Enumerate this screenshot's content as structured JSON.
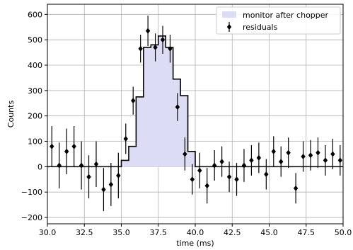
{
  "chart_data": {
    "type": "histogram_with_errorbars",
    "xlabel": "time (ms)",
    "ylabel": "Counts",
    "xlim": [
      30.0,
      50.0
    ],
    "ylim": [
      -225,
      640
    ],
    "grid": true,
    "legend_position": "top-right",
    "x_ticks": [
      30.0,
      32.5,
      35.0,
      37.5,
      40.0,
      42.5,
      45.0,
      47.5,
      50.0
    ],
    "x_tick_labels": [
      "30.0",
      "32.5",
      "35.0",
      "37.5",
      "40.0",
      "42.5",
      "45.0",
      "47.5",
      "50.0"
    ],
    "y_ticks": [
      -200,
      -100,
      0,
      100,
      200,
      300,
      400,
      500,
      600
    ],
    "y_tick_labels": [
      "−200",
      "−100",
      "0",
      "100",
      "200",
      "300",
      "400",
      "500",
      "600"
    ],
    "series": [
      {
        "name": "monitor after chopper",
        "kind": "step_fill",
        "color": "#dcdcf5",
        "edge_color": "#000000",
        "bin_edges": [
          30.0,
          35.0,
          35.5,
          36.0,
          36.5,
          37.0,
          37.5,
          38.0,
          38.5,
          39.0,
          39.5,
          40.0,
          50.0
        ],
        "values": [
          0,
          25,
          80,
          275,
          470,
          480,
          515,
          470,
          345,
          280,
          60,
          0
        ]
      },
      {
        "name": "residuals",
        "kind": "errorbar",
        "color": "#000000",
        "x": [
          30.3,
          30.8,
          31.3,
          31.8,
          32.3,
          32.8,
          33.3,
          33.8,
          34.3,
          34.8,
          35.3,
          35.8,
          36.3,
          36.8,
          37.3,
          37.8,
          38.3,
          38.8,
          39.3,
          39.8,
          40.3,
          40.8,
          41.3,
          41.8,
          42.3,
          42.8,
          43.3,
          43.8,
          44.3,
          44.8,
          45.3,
          45.8,
          46.3,
          46.8,
          47.3,
          47.8,
          48.3,
          48.8,
          49.3,
          49.8
        ],
        "y": [
          80,
          5,
          60,
          80,
          5,
          -40,
          10,
          -90,
          -70,
          -35,
          110,
          260,
          465,
          535,
          470,
          500,
          465,
          235,
          50,
          -50,
          -15,
          -75,
          5,
          20,
          -40,
          -50,
          5,
          25,
          35,
          -30,
          60,
          20,
          55,
          -85,
          40,
          45,
          55,
          25,
          50,
          25
        ],
        "yerr": [
          80,
          90,
          90,
          80,
          95,
          85,
          90,
          85,
          85,
          90,
          60,
          55,
          55,
          60,
          55,
          55,
          55,
          55,
          65,
          60,
          70,
          70,
          60,
          60,
          60,
          65,
          65,
          60,
          60,
          60,
          60,
          60,
          60,
          60,
          60,
          60,
          60,
          60,
          60,
          60
        ]
      }
    ]
  }
}
